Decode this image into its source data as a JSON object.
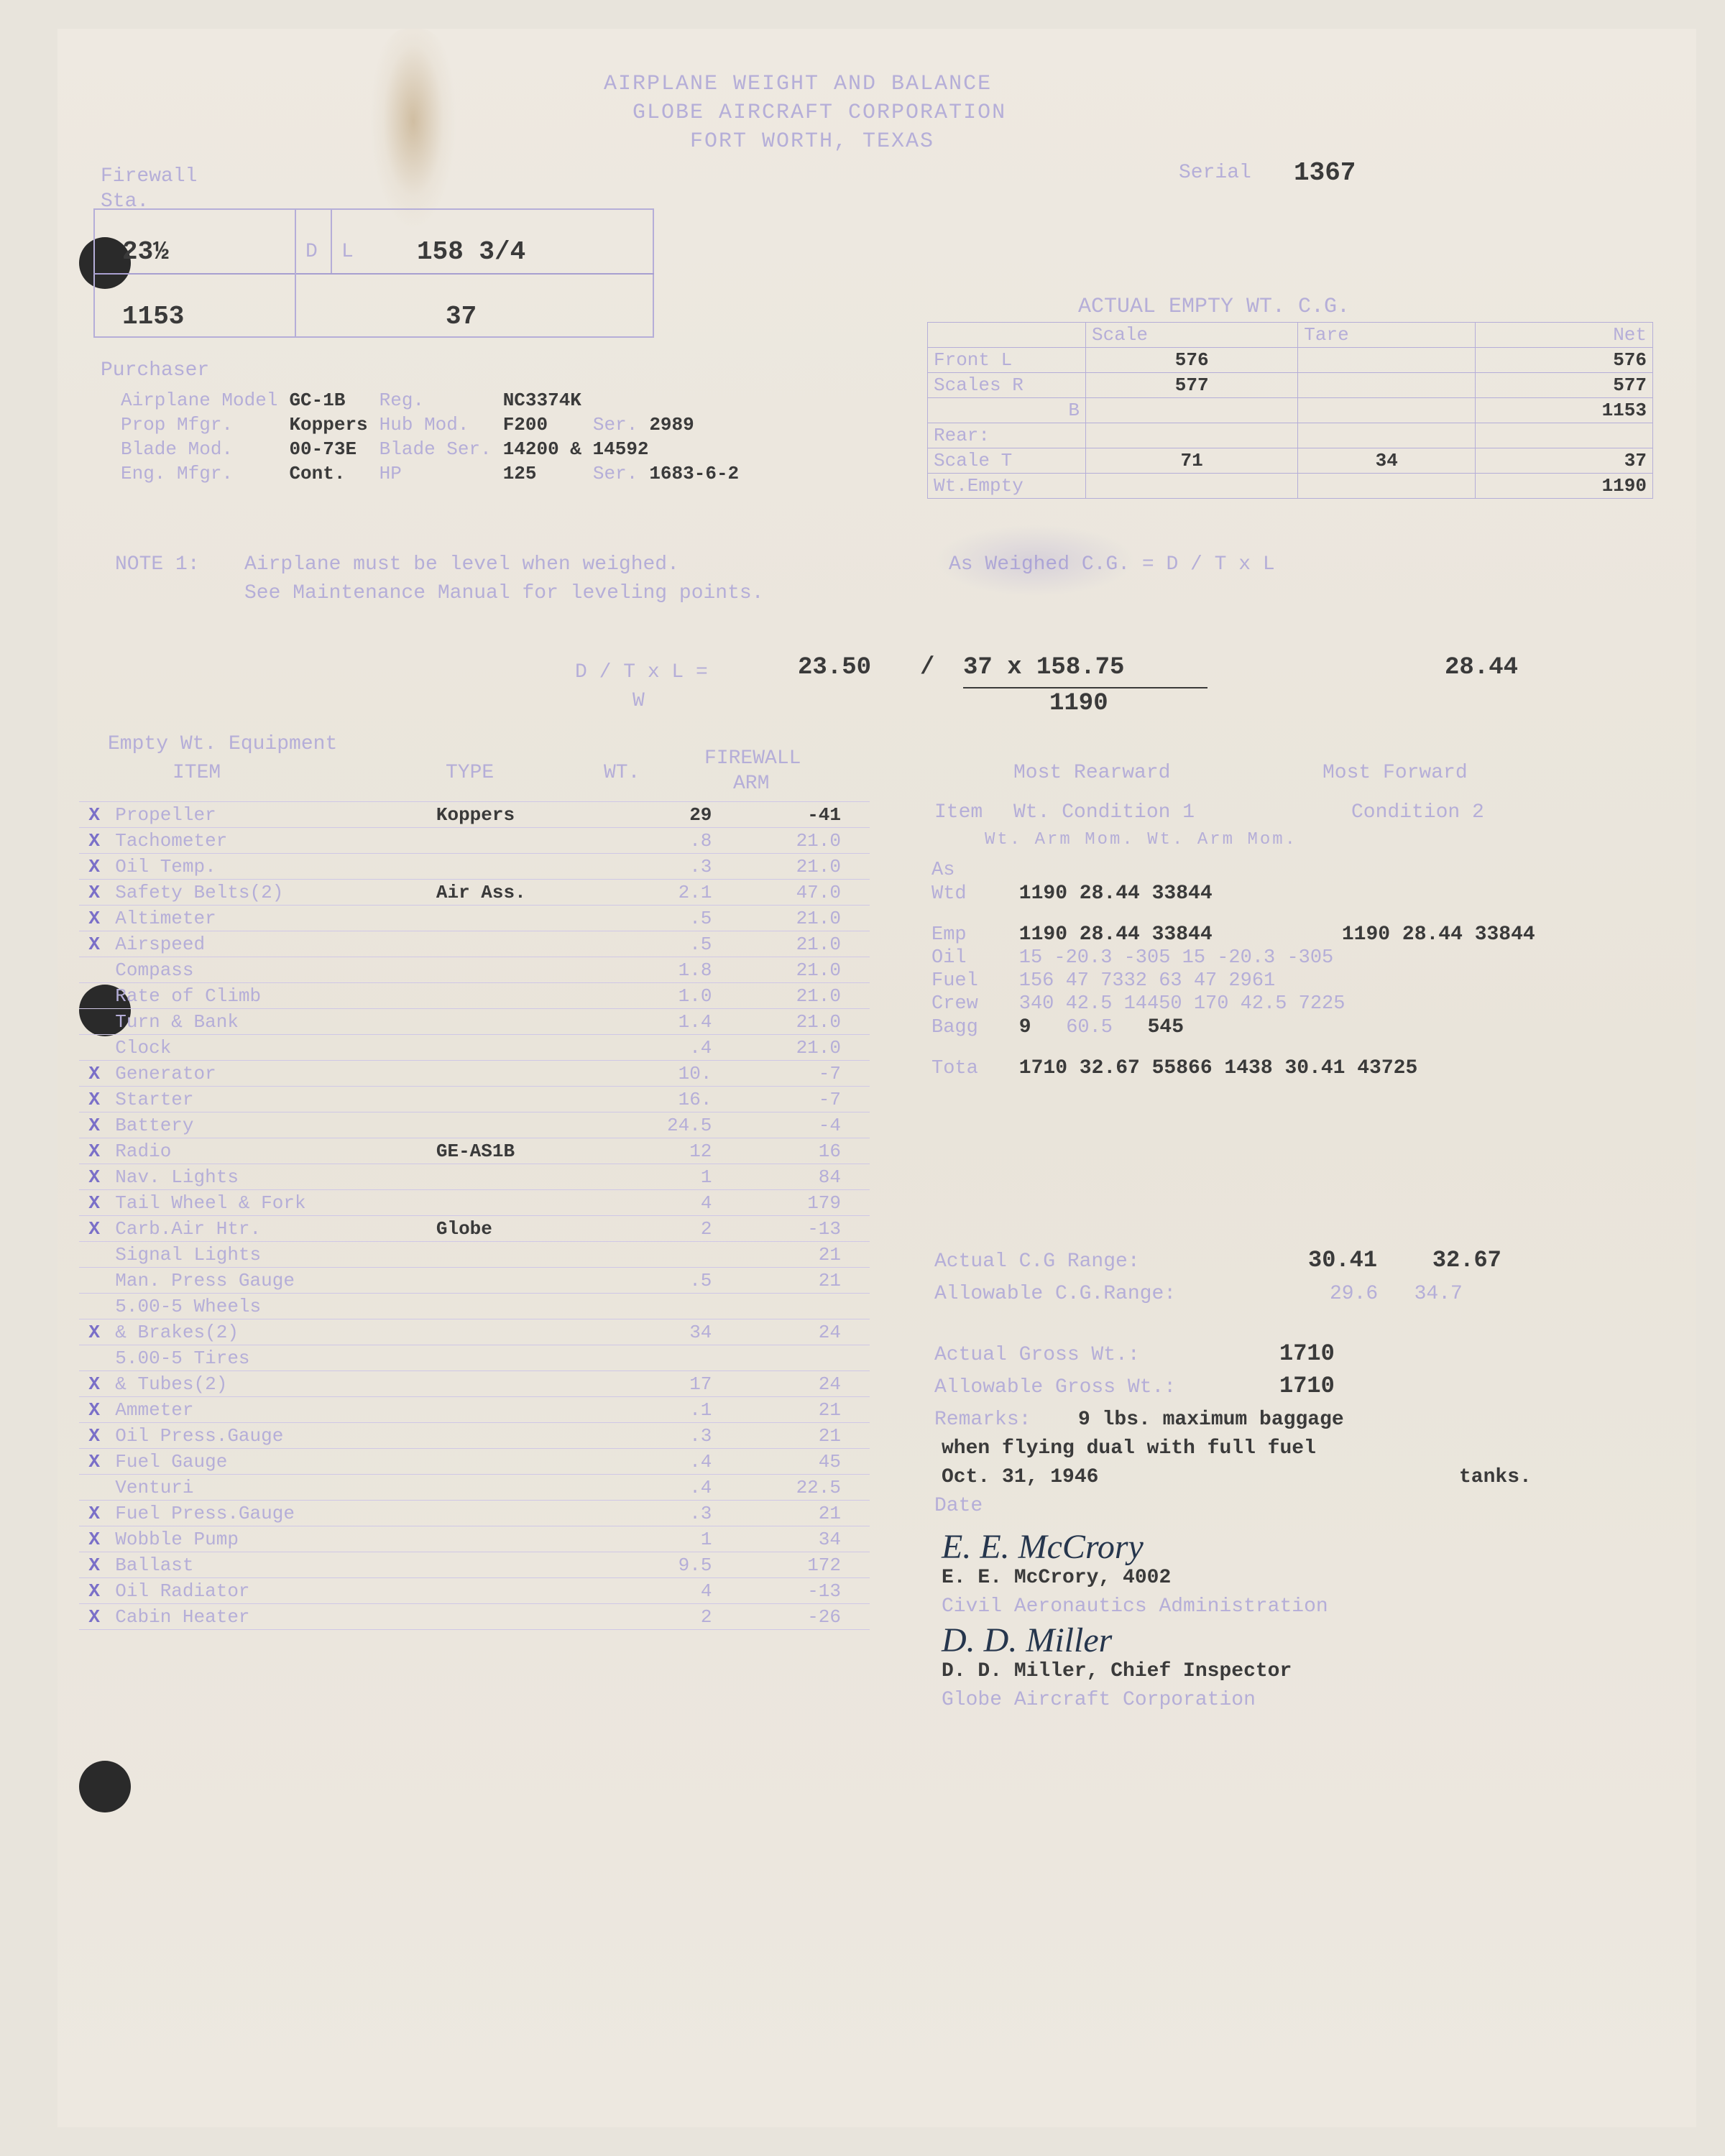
{
  "header": {
    "line1": "AIRPLANE WEIGHT AND BALANCE",
    "line2": "GLOBE AIRCRAFT CORPORATION",
    "line3": "FORT WORTH, TEXAS",
    "serial_label": "Serial",
    "serial": "1367"
  },
  "firewall": {
    "label": "Firewall",
    "sta": "Sta.",
    "row1_left": "23½",
    "row1_dl": "D",
    "row1_L": "L",
    "length": "158 3/4",
    "row2_left": "1153",
    "row2_val": "37"
  },
  "purchaser": {
    "label": "Purchaser",
    "airplane_model": "Airplane Model",
    "airplane_model_v": "GC-1B",
    "reg": "Reg.",
    "reg_v": "NC3374K",
    "prop_mfgr": "Prop Mfgr.",
    "prop_mfgr_v": "Koppers",
    "hub_mod": "Hub Mod.",
    "hub_mod_v": "F200",
    "ser1": "Ser.",
    "ser1_v": "2989",
    "blade_mod": "Blade Mod.",
    "blade_mod_v": "00-73E",
    "blade_ser": "Blade Ser.",
    "blade_ser_v": "14200 & 14592",
    "eng_mfgr": "Eng. Mfgr.",
    "eng_mfgr_v": "Cont.",
    "hp": "HP",
    "hp_v": "125",
    "ser2": "Ser.",
    "ser2_v": "1683-6-2"
  },
  "empty_wt": {
    "title": "ACTUAL EMPTY WT. C.G.",
    "hdr_scale": "Scale",
    "hdr_tare": "Tare",
    "hdr_net": "Net",
    "front_l": "Front L",
    "front_l_v": "576",
    "front_l_net": "576",
    "scales_r": "Scales R",
    "scales_r_v": "577",
    "scales_r_net": "577",
    "b": "B",
    "b_net": "1153",
    "rear": "Rear:",
    "scale_t": "Scale T",
    "scale_t_v": "71",
    "scale_t_tare": "34",
    "scale_t_net": "37",
    "wt_empty": "Wt.Empty",
    "wt_empty_v": "1190"
  },
  "note1": {
    "label": "NOTE 1:",
    "text1": "Airplane must be level when weighed.",
    "text2": "See Maintenance Manual for leveling points.",
    "text3": "As Weighed C.G. = D / T x L"
  },
  "formula": {
    "lhs": "D / T x L =",
    "lhs2": "W",
    "v1": "23.50",
    "slash": "/",
    "v2": "37 x 158.75",
    "denom": "1190",
    "result": "28.44"
  },
  "equip_hdr": {
    "title": "Empty Wt. Equipment",
    "item": "ITEM",
    "type": "TYPE",
    "wt": "WT.",
    "firewall": "FIREWALL",
    "arm": "ARM"
  },
  "equipment": [
    {
      "x": "X",
      "item": "Propeller",
      "type": "Koppers",
      "wt": "29",
      "arm": "-41"
    },
    {
      "x": "X",
      "item": "Tachometer",
      "type": "",
      "wt": ".8",
      "arm": "21.0"
    },
    {
      "x": "X",
      "item": "Oil Temp.",
      "type": "",
      "wt": ".3",
      "arm": "21.0"
    },
    {
      "x": "X",
      "item": "Safety Belts(2)",
      "type": "Air Ass.",
      "wt": "2.1",
      "arm": "47.0"
    },
    {
      "x": "X",
      "item": "Altimeter",
      "type": "",
      "wt": ".5",
      "arm": "21.0"
    },
    {
      "x": "X",
      "item": "Airspeed",
      "type": "",
      "wt": ".5",
      "arm": "21.0"
    },
    {
      "x": "",
      "item": "Compass",
      "type": "",
      "wt": "1.8",
      "arm": "21.0"
    },
    {
      "x": "",
      "item": "Rate of Climb",
      "type": "",
      "wt": "1.0",
      "arm": "21.0"
    },
    {
      "x": "",
      "item": "Turn & Bank",
      "type": "",
      "wt": "1.4",
      "arm": "21.0"
    },
    {
      "x": "",
      "item": "Clock",
      "type": "",
      "wt": ".4",
      "arm": "21.0"
    },
    {
      "x": "X",
      "item": "Generator",
      "type": "",
      "wt": "10.",
      "arm": "-7"
    },
    {
      "x": "X",
      "item": "Starter",
      "type": "",
      "wt": "16.",
      "arm": "-7"
    },
    {
      "x": "X",
      "item": "Battery",
      "type": "",
      "wt": "24.5",
      "arm": "-4"
    },
    {
      "x": "X",
      "item": "Radio",
      "type": "GE-AS1B",
      "wt": "12",
      "arm": "16"
    },
    {
      "x": "X",
      "item": "Nav. Lights",
      "type": "",
      "wt": "1",
      "arm": "84"
    },
    {
      "x": "X",
      "item": "Tail Wheel & Fork",
      "type": "",
      "wt": "4",
      "arm": "179"
    },
    {
      "x": "X",
      "item": "Carb.Air Htr.",
      "type": "Globe",
      "wt": "2",
      "arm": "-13"
    },
    {
      "x": "",
      "item": "Signal Lights",
      "type": "",
      "wt": "",
      "arm": "21"
    },
    {
      "x": "",
      "item": "Man. Press Gauge",
      "type": "",
      "wt": ".5",
      "arm": "21"
    },
    {
      "x": "",
      "item": "5.00-5 Wheels",
      "type": "",
      "wt": "",
      "arm": ""
    },
    {
      "x": "X",
      "item": "& Brakes(2)",
      "type": "",
      "wt": "34",
      "arm": "24"
    },
    {
      "x": "",
      "item": "5.00-5 Tires",
      "type": "",
      "wt": "",
      "arm": ""
    },
    {
      "x": "X",
      "item": "& Tubes(2)",
      "type": "",
      "wt": "17",
      "arm": "24"
    },
    {
      "x": "X",
      "item": "Ammeter",
      "type": "",
      "wt": ".1",
      "arm": "21"
    },
    {
      "x": "X",
      "item": "Oil Press.Gauge",
      "type": "",
      "wt": ".3",
      "arm": "21"
    },
    {
      "x": "X",
      "item": "Fuel Gauge",
      "type": "",
      "wt": ".4",
      "arm": "45"
    },
    {
      "x": "",
      "item": "Venturi",
      "type": "",
      "wt": ".4",
      "arm": "22.5"
    },
    {
      "x": "X",
      "item": "Fuel Press.Gauge",
      "type": "",
      "wt": ".3",
      "arm": "21"
    },
    {
      "x": "X",
      "item": "Wobble Pump",
      "type": "",
      "wt": "1",
      "arm": "34"
    },
    {
      "x": "X",
      "item": "Ballast",
      "type": "",
      "wt": "9.5",
      "arm": "172"
    },
    {
      "x": "X",
      "item": "Oil Radiator",
      "type": "",
      "wt": "4",
      "arm": "-13"
    },
    {
      "x": "X",
      "item": "Cabin Heater",
      "type": "",
      "wt": "2",
      "arm": "-26"
    }
  ],
  "conditions": {
    "rear_lbl": "Most Rearward",
    "fwd_lbl": "Most Forward",
    "item_lbl": "Item",
    "cond1": "Wt. Condition 1",
    "cond2": "Condition 2",
    "cols": "Wt.   Arm   Mom.  Wt.  Arm   Mom.",
    "as": "As",
    "wtd": "Wtd",
    "wtd_v": "1190 28.44 33844",
    "emp": "Emp",
    "emp_v1": "1190 28.44 33844",
    "emp_v2": "1190 28.44 33844",
    "oil": "Oil",
    "oil_v": " 15  -20.3  -305  15 -20.3 -305",
    "fuel": "Fuel",
    "fuel_v": "156    47  7332  63   47  2961",
    "crew": "Crew",
    "crew_v": "340  42.5 14450 170 42.5 7225",
    "bagg": "Bagg",
    "bagg_v1": "9",
    "bagg_v2": "60.5",
    "bagg_v3": "545",
    "tota": "Tota",
    "tota_v": "1710 32.67 55866 1438 30.41 43725",
    "actual_cg": "Actual C.G Range:",
    "actual_cg_v": "30.41    32.67",
    "allow_cg": "Allowable C.G.Range:",
    "allow_cg_v": "29.6   34.7",
    "actual_gw": "Actual Gross Wt.:",
    "actual_gw_v": "1710",
    "allow_gw": "Allowable Gross Wt.:",
    "allow_gw_v": "1710",
    "remarks": "Remarks:",
    "remarks_v1": "9 lbs. maximum baggage",
    "remarks_v2": "when flying dual with full fuel",
    "remarks_v3": "tanks.",
    "date": "Date",
    "date_v": "Oct. 31, 1946"
  },
  "sign": {
    "sig1": "E. E. McCrory",
    "name1": "E. E. McCrory, 4002",
    "org1": "Civil Aeronautics Administration",
    "sig2": "D. D. Miller",
    "name2": "D. D. Miller, Chief Inspector",
    "org2": "Globe Aircraft Corporation"
  }
}
